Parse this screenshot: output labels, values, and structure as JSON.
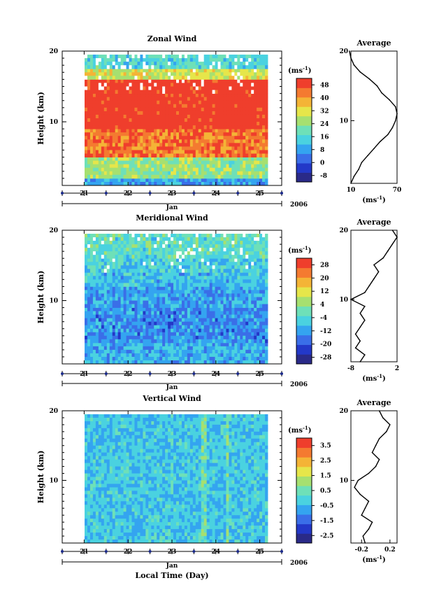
{
  "chart_data": [
    {
      "type": "heatmap",
      "title": "Zonal Wind",
      "ylabel": "Height (km)",
      "xlabel": "Jan",
      "year_label": "2006",
      "x_ticks": [
        "21",
        "22",
        "23",
        "24",
        "25"
      ],
      "y_ticks": [
        "10",
        "20"
      ],
      "ylim": [
        1,
        20
      ],
      "xlim": [
        20.5,
        25.5
      ],
      "colorbar": {
        "unit": "(ms",
        "unit_sup": "-1",
        "unit_close": ")",
        "labels": [
          "48",
          "40",
          "32",
          "24",
          "16",
          "8",
          "0",
          "-8"
        ],
        "min": -12,
        "max": 52
      },
      "bands": [
        {
          "z0": 1,
          "z1": 2,
          "value": 8
        },
        {
          "z0": 2,
          "z1": 5,
          "value": 24
        },
        {
          "z0": 5,
          "z1": 9,
          "value": 44
        },
        {
          "z0": 9,
          "z1": 14,
          "value": 52
        },
        {
          "z0": 14,
          "z1": 16,
          "value": 52
        },
        {
          "z0": 16,
          "z1": 17.5,
          "value": 30
        },
        {
          "z0": 17.5,
          "z1": 19.5,
          "value": 16
        }
      ],
      "average": {
        "title": "Average",
        "xlabel": "(ms",
        "xlabel_sup": "-1",
        "xlabel_close": ")",
        "x_ticks": [
          "10",
          "70"
        ],
        "xlim": [
          10,
          70
        ],
        "y_ticks": [
          "10",
          "20"
        ],
        "height": [
          1,
          2,
          3,
          4,
          5,
          6,
          7,
          8,
          9,
          10,
          11,
          12,
          13,
          14,
          15,
          16,
          17,
          18,
          19,
          20
        ],
        "value": [
          10,
          14,
          20,
          24,
          32,
          40,
          48,
          58,
          64,
          68,
          70,
          68,
          60,
          50,
          44,
          34,
          22,
          14,
          10,
          8
        ]
      }
    },
    {
      "type": "heatmap",
      "title": "Meridional Wind",
      "ylabel": "Height (km)",
      "xlabel": "Jan",
      "year_label": "2006",
      "x_ticks": [
        "21",
        "22",
        "23",
        "24",
        "25"
      ],
      "y_ticks": [
        "10",
        "20"
      ],
      "ylim": [
        1,
        20
      ],
      "xlim": [
        20.5,
        25.5
      ],
      "colorbar": {
        "unit": "(ms",
        "unit_sup": "-1",
        "unit_close": ")",
        "labels": [
          "28",
          "20",
          "12",
          "4",
          "-4",
          "-12",
          "-20",
          "-28"
        ],
        "min": -32,
        "max": 32
      },
      "bands": [
        {
          "z0": 1,
          "z1": 4,
          "value": -10
        },
        {
          "z0": 4,
          "z1": 9,
          "value": -14
        },
        {
          "z0": 9,
          "z1": 12,
          "value": -12
        },
        {
          "z0": 12,
          "z1": 14,
          "value": -8
        },
        {
          "z0": 14,
          "z1": 16,
          "value": -6
        },
        {
          "z0": 16,
          "z1": 19.5,
          "value": -2
        }
      ],
      "average": {
        "title": "Average",
        "xlabel": "(ms",
        "xlabel_sup": "-1",
        "xlabel_close": ")",
        "x_ticks": [
          "-8",
          "2"
        ],
        "xlim": [
          -8,
          2
        ],
        "y_ticks": [
          "10",
          "20"
        ],
        "height": [
          1,
          2,
          3,
          4,
          5,
          6,
          7,
          8,
          9,
          10,
          11,
          12,
          13,
          14,
          15,
          16,
          17,
          18,
          19,
          20
        ],
        "value": [
          -6,
          -5,
          -7,
          -6,
          -7,
          -6,
          -5,
          -6,
          -5,
          -8,
          -5,
          -4,
          -3,
          -2,
          -3,
          -1,
          0,
          1,
          2,
          1
        ]
      }
    },
    {
      "type": "heatmap",
      "title": "Vertical Wind",
      "ylabel": "Height (km)",
      "xlabel": "Jan",
      "x_title": "Local Time (Day)",
      "year_label": "2006",
      "x_ticks": [
        "21",
        "22",
        "23",
        "24",
        "25"
      ],
      "y_ticks": [
        "10",
        "20"
      ],
      "ylim": [
        1,
        20
      ],
      "xlim": [
        20.5,
        25.5
      ],
      "colorbar": {
        "unit": "(ms",
        "unit_sup": "-1",
        "unit_close": ")",
        "labels": [
          "3.5",
          "2.5",
          "1.5",
          "0.5",
          "-0.5",
          "-1.5",
          "-2.5"
        ],
        "min": -3,
        "max": 4
      },
      "bands": [
        {
          "z0": 1,
          "z1": 19.5,
          "value": -0.3
        }
      ],
      "average": {
        "title": "Average",
        "xlabel": "(ms",
        "xlabel_sup": "-1",
        "xlabel_close": ")",
        "x_ticks": [
          "-0.2",
          "0.2"
        ],
        "xlim": [
          -0.35,
          0.3
        ],
        "y_ticks": [
          "10",
          "20"
        ],
        "height": [
          1,
          2,
          3,
          4,
          5,
          6,
          7,
          8,
          9,
          10,
          11,
          12,
          13,
          14,
          15,
          16,
          17,
          18,
          19,
          20
        ],
        "value": [
          -0.15,
          -0.18,
          -0.1,
          -0.05,
          -0.2,
          -0.15,
          -0.1,
          -0.22,
          -0.3,
          -0.25,
          -0.1,
          0.0,
          0.05,
          -0.05,
          0.0,
          0.05,
          0.15,
          0.2,
          0.1,
          0.05
        ]
      }
    }
  ],
  "colors": {
    "palette": [
      "#2a2a88",
      "#2338c8",
      "#3a6ee8",
      "#34a4f0",
      "#4ad2e0",
      "#6ee0b8",
      "#a6e070",
      "#e6e64a",
      "#f4b436",
      "#f47a30",
      "#ef3e2c"
    ]
  }
}
